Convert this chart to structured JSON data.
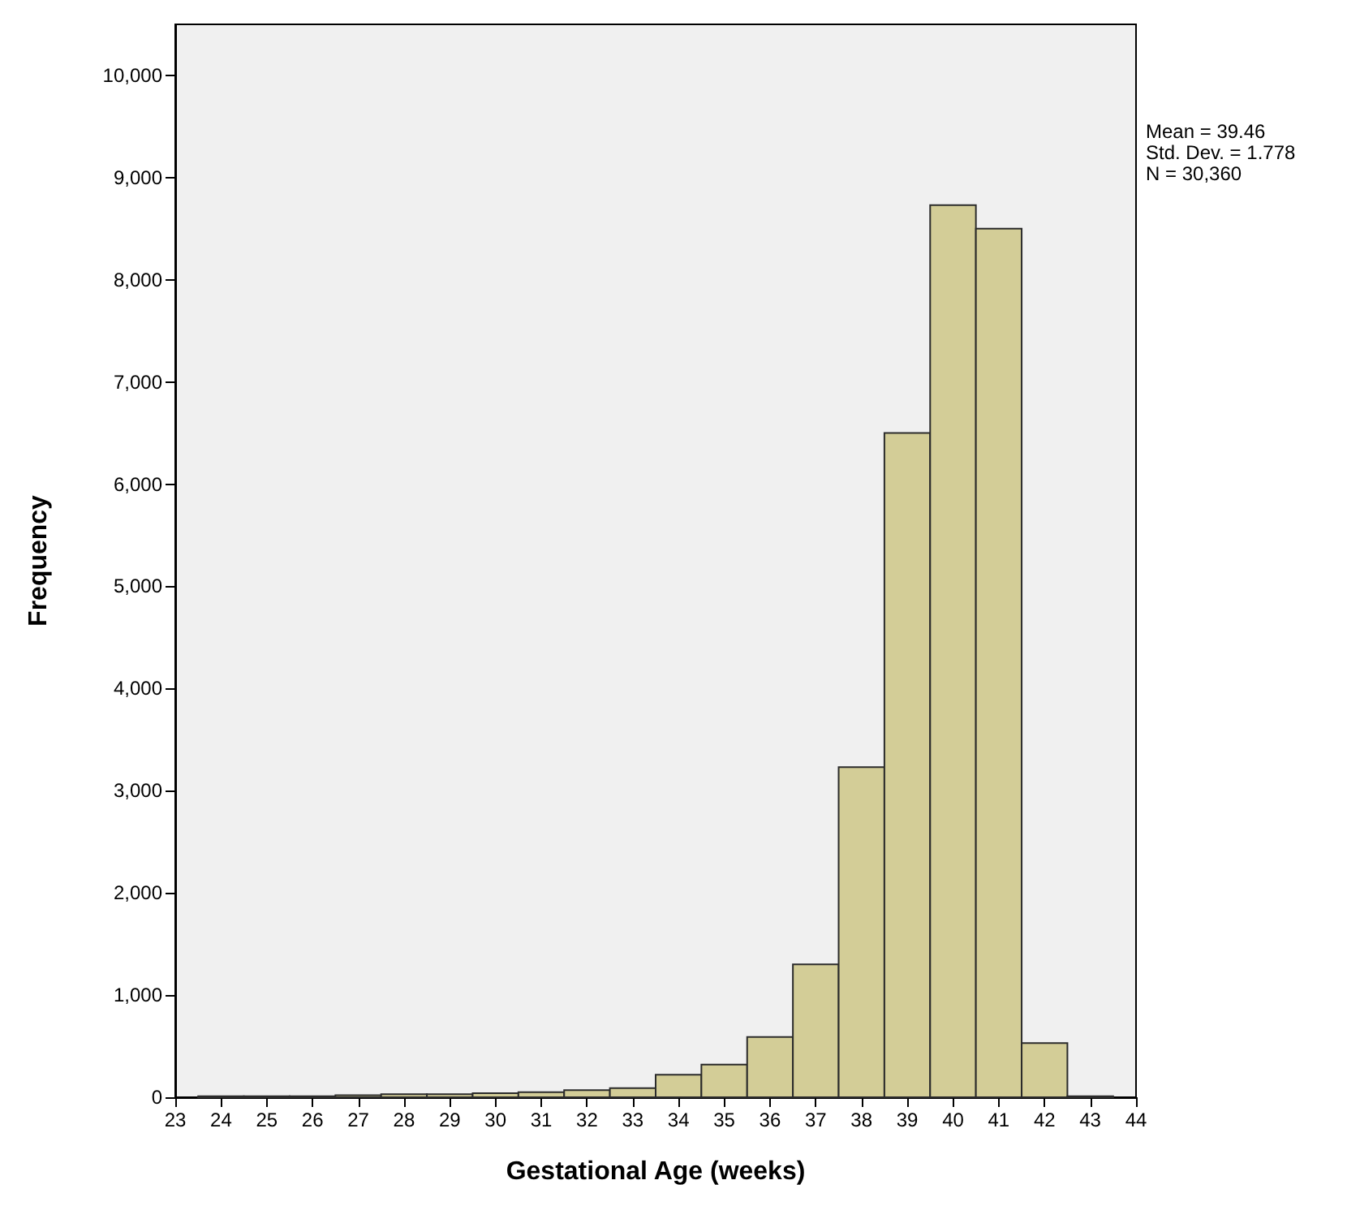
{
  "chart_data": {
    "type": "histogram",
    "xlabel": "Gestational Age (weeks)",
    "ylabel": "Frequency",
    "bins": [
      23.5,
      24.5,
      25.5,
      26.5,
      27.5,
      28.5,
      29.5,
      30.5,
      31.5,
      32.5,
      33.5,
      34.5,
      35.5,
      36.5,
      37.5,
      38.5,
      39.5,
      40.5,
      41.5,
      42.5,
      43.5
    ],
    "values": [
      10,
      10,
      10,
      20,
      30,
      30,
      40,
      50,
      70,
      90,
      220,
      320,
      590,
      1300,
      3230,
      6500,
      8730,
      8500,
      530,
      10
    ],
    "color": "#d3cd97",
    "xlim": [
      23,
      44
    ],
    "xticks": [
      23,
      24,
      25,
      26,
      27,
      28,
      29,
      30,
      31,
      32,
      33,
      34,
      35,
      36,
      37,
      38,
      39,
      40,
      41,
      42,
      43,
      44
    ],
    "ylim": [
      0,
      10500
    ],
    "yticks": [
      {
        "value": 0,
        "label": "0"
      },
      {
        "value": 1000,
        "label": "1,000"
      },
      {
        "value": 2000,
        "label": "2,000"
      },
      {
        "value": 3000,
        "label": "3,000"
      },
      {
        "value": 4000,
        "label": "4,000"
      },
      {
        "value": 5000,
        "label": "5,000"
      },
      {
        "value": 6000,
        "label": "6,000"
      },
      {
        "value": 7000,
        "label": "7,000"
      },
      {
        "value": 8000,
        "label": "8,000"
      },
      {
        "value": 9000,
        "label": "9,000"
      },
      {
        "value": 10000,
        "label": "10,000"
      }
    ],
    "grid": false,
    "annotations": [
      "Mean = 39.46",
      "Std. Dev. = 1.778",
      "N = 30,360"
    ]
  }
}
